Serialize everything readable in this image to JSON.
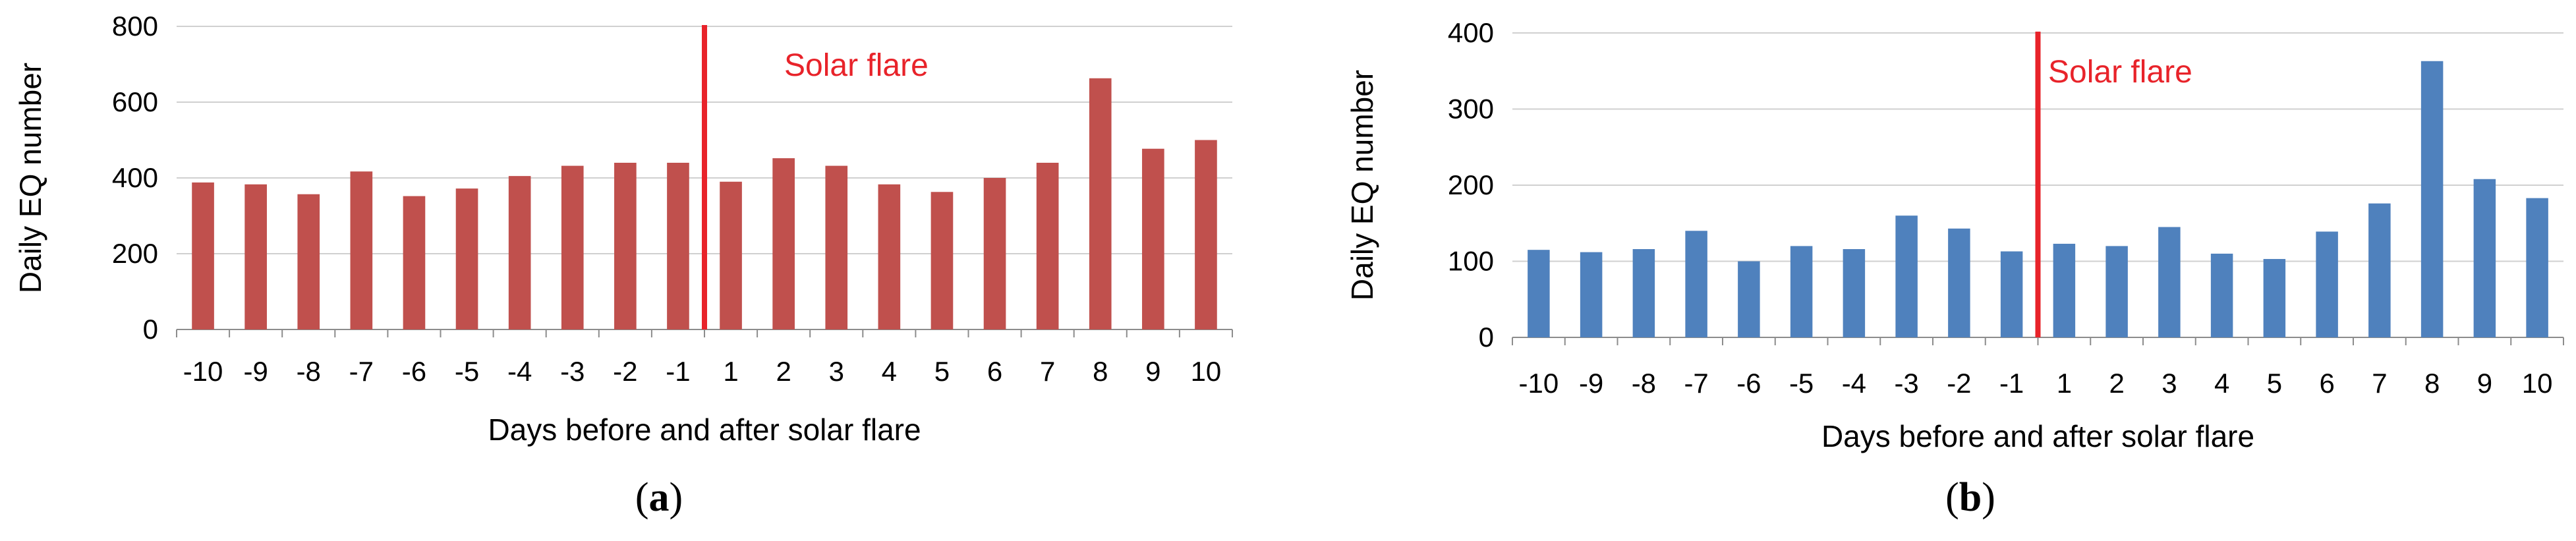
{
  "chart_data": [
    {
      "type": "bar",
      "panel": "(a)",
      "panel_letter": "a",
      "categories": [
        "-10",
        "-9",
        "-8",
        "-7",
        "-6",
        "-5",
        "-4",
        "-3",
        "-2",
        "-1",
        "1",
        "2",
        "3",
        "4",
        "5",
        "6",
        "7",
        "8",
        "9",
        "10"
      ],
      "values": [
        388,
        383,
        357,
        417,
        352,
        372,
        405,
        432,
        440,
        440,
        390,
        452,
        432,
        383,
        363,
        400,
        440,
        663,
        477,
        500
      ],
      "ylabel": "Daily EQ number",
      "xlabel": "Days before and after solar flare",
      "ylim": [
        0,
        800
      ],
      "yticks": [
        0,
        200,
        400,
        600,
        800
      ],
      "bar_color": "#c0504d",
      "annotation": {
        "text": "Solar flare",
        "after_category": "-1",
        "color": "#e8232a"
      },
      "grid": true
    },
    {
      "type": "bar",
      "panel": "(b)",
      "panel_letter": "b",
      "categories": [
        "-10",
        "-9",
        "-8",
        "-7",
        "-6",
        "-5",
        "-4",
        "-3",
        "-2",
        "-1",
        "1",
        "2",
        "3",
        "4",
        "5",
        "6",
        "7",
        "8",
        "9",
        "10"
      ],
      "values": [
        115,
        112,
        116,
        140,
        100,
        120,
        116,
        160,
        143,
        113,
        123,
        120,
        145,
        110,
        103,
        139,
        176,
        363,
        208,
        183
      ],
      "ylabel": "Daily EQ number",
      "xlabel": "Days before and after solar flare",
      "ylim": [
        0,
        400
      ],
      "yticks": [
        0,
        100,
        200,
        300,
        400
      ],
      "bar_color": "#4f81bd",
      "annotation": {
        "text": "Solar flare",
        "after_category": "-1",
        "color": "#e8232a"
      },
      "grid": true
    }
  ]
}
